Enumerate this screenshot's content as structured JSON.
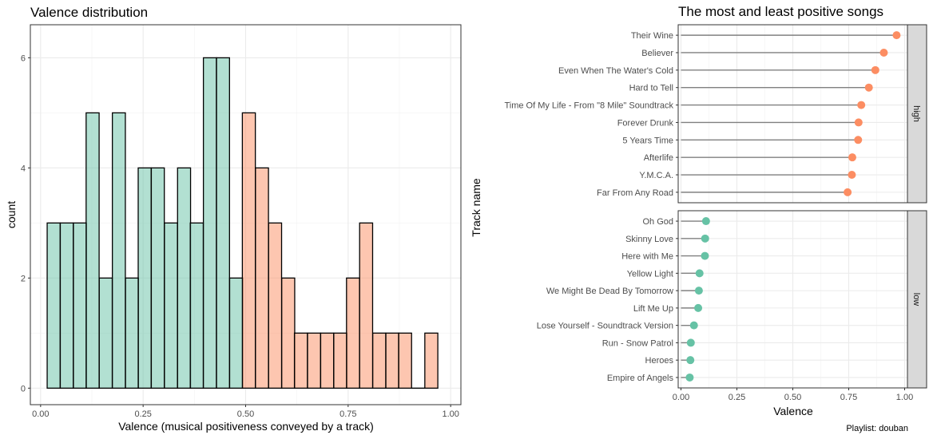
{
  "chart_data": [
    {
      "type": "bar",
      "title": "Valence distribution",
      "xlabel": "Valence (musical positiveness conveyed by a track)",
      "ylabel": "count",
      "xlim": [
        -0.025,
        1.025
      ],
      "ylim": [
        -0.3,
        6.6
      ],
      "x_ticks": [
        0.0,
        0.25,
        0.5,
        0.75,
        1.0
      ],
      "x_tick_labels": [
        "0.00",
        "0.25",
        "0.50",
        "0.75",
        "1.00"
      ],
      "y_ticks": [
        0,
        2,
        4,
        6
      ],
      "y_tick_labels": [
        "0",
        "2",
        "4",
        "6"
      ],
      "grid": true,
      "bin_width": 0.0317,
      "fill_colors": {
        "low": "#66c2a5",
        "high": "#fc8d62"
      },
      "bins": [
        {
          "x0": 0.016,
          "count": 3,
          "group": "low"
        },
        {
          "x0": 0.048,
          "count": 3,
          "group": "low"
        },
        {
          "x0": 0.08,
          "count": 3,
          "group": "low"
        },
        {
          "x0": 0.111,
          "count": 5,
          "group": "low"
        },
        {
          "x0": 0.143,
          "count": 2,
          "group": "low"
        },
        {
          "x0": 0.175,
          "count": 5,
          "group": "low"
        },
        {
          "x0": 0.207,
          "count": 2,
          "group": "low"
        },
        {
          "x0": 0.238,
          "count": 4,
          "group": "low"
        },
        {
          "x0": 0.27,
          "count": 4,
          "group": "low"
        },
        {
          "x0": 0.302,
          "count": 3,
          "group": "low"
        },
        {
          "x0": 0.334,
          "count": 4,
          "group": "low"
        },
        {
          "x0": 0.365,
          "count": 3,
          "group": "low"
        },
        {
          "x0": 0.397,
          "count": 6,
          "group": "low"
        },
        {
          "x0": 0.429,
          "count": 6,
          "group": "low"
        },
        {
          "x0": 0.461,
          "count": 2,
          "group": "low"
        },
        {
          "x0": 0.492,
          "count": 5,
          "group": "high"
        },
        {
          "x0": 0.524,
          "count": 4,
          "group": "high"
        },
        {
          "x0": 0.556,
          "count": 3,
          "group": "high"
        },
        {
          "x0": 0.588,
          "count": 2,
          "group": "high"
        },
        {
          "x0": 0.619,
          "count": 1,
          "group": "high"
        },
        {
          "x0": 0.651,
          "count": 1,
          "group": "high"
        },
        {
          "x0": 0.683,
          "count": 1,
          "group": "high"
        },
        {
          "x0": 0.715,
          "count": 1,
          "group": "high"
        },
        {
          "x0": 0.746,
          "count": 2,
          "group": "high"
        },
        {
          "x0": 0.778,
          "count": 3,
          "group": "high"
        },
        {
          "x0": 0.81,
          "count": 1,
          "group": "high"
        },
        {
          "x0": 0.842,
          "count": 1,
          "group": "high"
        },
        {
          "x0": 0.873,
          "count": 1,
          "group": "high"
        },
        {
          "x0": 0.905,
          "count": 0,
          "group": "high"
        },
        {
          "x0": 0.937,
          "count": 1,
          "group": "high"
        }
      ]
    },
    {
      "type": "scatter",
      "subtype": "lollipop",
      "title": "The most and least positive songs",
      "xlabel": "Valence",
      "ylabel": "Track name",
      "xlim": [
        -0.0125,
        1.0125
      ],
      "x_ticks": [
        0.0,
        0.25,
        0.5,
        0.75,
        1.0
      ],
      "x_tick_labels": [
        "0.00",
        "0.25",
        "0.50",
        "0.75",
        "1.00"
      ],
      "grid": true,
      "point_colors": {
        "high": "#fc8d62",
        "low": "#66c2a5"
      },
      "facets": [
        {
          "label": "high",
          "tracks": [
            {
              "name": "Their Wine",
              "valence": 0.964
            },
            {
              "name": "Believer",
              "valence": 0.907
            },
            {
              "name": "Even When The Water's Cold",
              "valence": 0.869
            },
            {
              "name": "Hard to Tell",
              "valence": 0.84
            },
            {
              "name": "Time Of My Life - From \"8 Mile\" Soundtrack",
              "valence": 0.806
            },
            {
              "name": "Forever Drunk",
              "valence": 0.794
            },
            {
              "name": "5 Years Time",
              "valence": 0.792
            },
            {
              "name": "Afterlife",
              "valence": 0.766
            },
            {
              "name": "Y.M.C.A.",
              "valence": 0.764
            },
            {
              "name": "Far From Any Road",
              "valence": 0.745
            }
          ]
        },
        {
          "label": "low",
          "tracks": [
            {
              "name": "Oh God",
              "valence": 0.112
            },
            {
              "name": "Skinny Love",
              "valence": 0.108
            },
            {
              "name": "Here with Me",
              "valence": 0.107
            },
            {
              "name": "Yellow Light",
              "valence": 0.083
            },
            {
              "name": "We Might Be Dead By Tomorrow",
              "valence": 0.08
            },
            {
              "name": "Lift Me Up",
              "valence": 0.077
            },
            {
              "name": "Lose Yourself - Soundtrack Version",
              "valence": 0.058
            },
            {
              "name": "Run - Snow Patrol",
              "valence": 0.044
            },
            {
              "name": "Heroes",
              "valence": 0.042
            },
            {
              "name": "Empire of Angels",
              "valence": 0.039
            }
          ]
        }
      ]
    }
  ],
  "caption": "Playlist: douban"
}
